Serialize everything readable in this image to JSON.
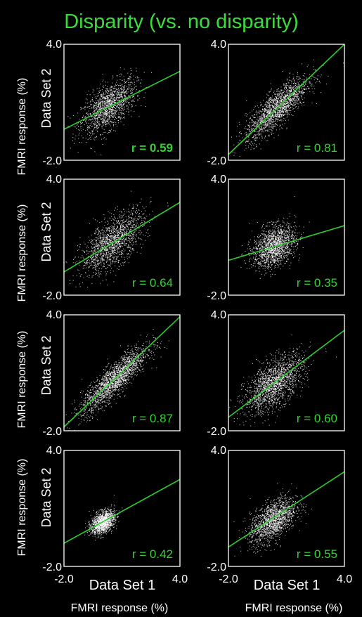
{
  "title": "Disparity (vs. no disparity)",
  "chart_data": {
    "type": "scatter",
    "xlim": [
      -2.0,
      4.0
    ],
    "ylim": [
      -2.0,
      4.0
    ],
    "tick_labels": {
      "min": "-2.0",
      "max": "4.0"
    },
    "inner_y_label": "Data Set  2",
    "outer_y_label": "FMRI response (%)",
    "inner_x_label": "Data Set  1",
    "outer_x_label": "FMRI response (%)",
    "colors": {
      "fit_line": "#2ecc2e",
      "points": "#ffffff",
      "label": "#32d232",
      "title": "#3bdc3b"
    },
    "panels": [
      {
        "row": 0,
        "col": 0,
        "r_label": "r = 0.59",
        "r_bold": true,
        "fit": {
          "slope": 0.5,
          "intercept": 0.6
        },
        "cloud": {
          "cx": 0.3,
          "cy": 0.8,
          "sd": 0.7,
          "r": 0.59,
          "n": 1500
        }
      },
      {
        "row": 0,
        "col": 1,
        "r_label": "r = 0.81",
        "r_bold": false,
        "fit": {
          "slope": 0.95,
          "intercept": 0.2
        },
        "cloud": {
          "cx": 0.5,
          "cy": 0.7,
          "sd": 0.8,
          "r": 0.81,
          "n": 1800
        }
      },
      {
        "row": 1,
        "col": 0,
        "r_label": "r = 0.64",
        "r_bold": false,
        "fit": {
          "slope": 0.6,
          "intercept": 0.4
        },
        "cloud": {
          "cx": 0.5,
          "cy": 0.75,
          "sd": 0.8,
          "r": 0.64,
          "n": 1600
        }
      },
      {
        "row": 1,
        "col": 1,
        "r_label": "r = 0.35",
        "r_bold": false,
        "fit": {
          "slope": 0.3,
          "intercept": 0.4
        },
        "cloud": {
          "cx": 0.35,
          "cy": 0.55,
          "sd": 0.55,
          "r": 0.35,
          "n": 1600
        }
      },
      {
        "row": 2,
        "col": 0,
        "r_label": "r = 0.87",
        "r_bold": false,
        "fit": {
          "slope": 0.95,
          "intercept": 0.1
        },
        "cloud": {
          "cx": 0.6,
          "cy": 0.65,
          "sd": 0.85,
          "r": 0.87,
          "n": 2000
        }
      },
      {
        "row": 2,
        "col": 1,
        "r_label": "r = 0.60",
        "r_bold": false,
        "fit": {
          "slope": 0.75,
          "intercept": 0.2
        },
        "cloud": {
          "cx": 0.35,
          "cy": 0.45,
          "sd": 0.75,
          "r": 0.6,
          "n": 1800
        }
      },
      {
        "row": 3,
        "col": 0,
        "r_label": "r = 0.42",
        "r_bold": false,
        "fit": {
          "slope": 0.55,
          "intercept": 0.3
        },
        "cloud": {
          "cx": 0.0,
          "cy": 0.3,
          "sd": 0.3,
          "r": 0.42,
          "n": 1400
        }
      },
      {
        "row": 3,
        "col": 1,
        "r_label": "r = 0.55",
        "r_bold": false,
        "fit": {
          "slope": 0.65,
          "intercept": 0.3
        },
        "cloud": {
          "cx": 0.3,
          "cy": 0.4,
          "sd": 0.6,
          "r": 0.55,
          "n": 1600
        }
      }
    ]
  }
}
